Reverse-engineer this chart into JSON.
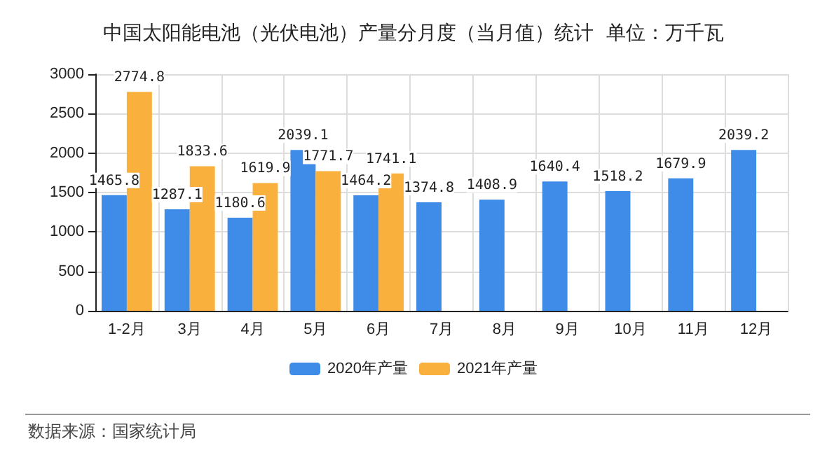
{
  "chart_data": {
    "type": "bar",
    "title": "中国太阳能电池（光伏电池）产量分月度（当月值）统计  单位：万千瓦",
    "categories": [
      "1-2月",
      "3月",
      "4月",
      "5月",
      "6月",
      "7月",
      "8月",
      "9月",
      "10月",
      "11月",
      "12月"
    ],
    "series": [
      {
        "name": "2020年产量",
        "color": "#3f8be8",
        "values": [
          1465.8,
          1287.1,
          1180.6,
          2039.1,
          1464.2,
          1374.8,
          1408.9,
          1640.4,
          1518.2,
          1679.9,
          2039.2
        ]
      },
      {
        "name": "2021年产量",
        "color": "#fab03c",
        "values": [
          2774.8,
          1833.6,
          1619.9,
          1771.7,
          1741.1,
          null,
          null,
          null,
          null,
          null,
          null
        ]
      }
    ],
    "ylim": [
      0,
      3000
    ],
    "yticks": [
      0,
      500,
      1000,
      1500,
      2000,
      2500,
      3000
    ],
    "grid": true,
    "legend": "bottom",
    "data_labels": true,
    "annotations": [
      "数据来源：国家统计局"
    ]
  }
}
